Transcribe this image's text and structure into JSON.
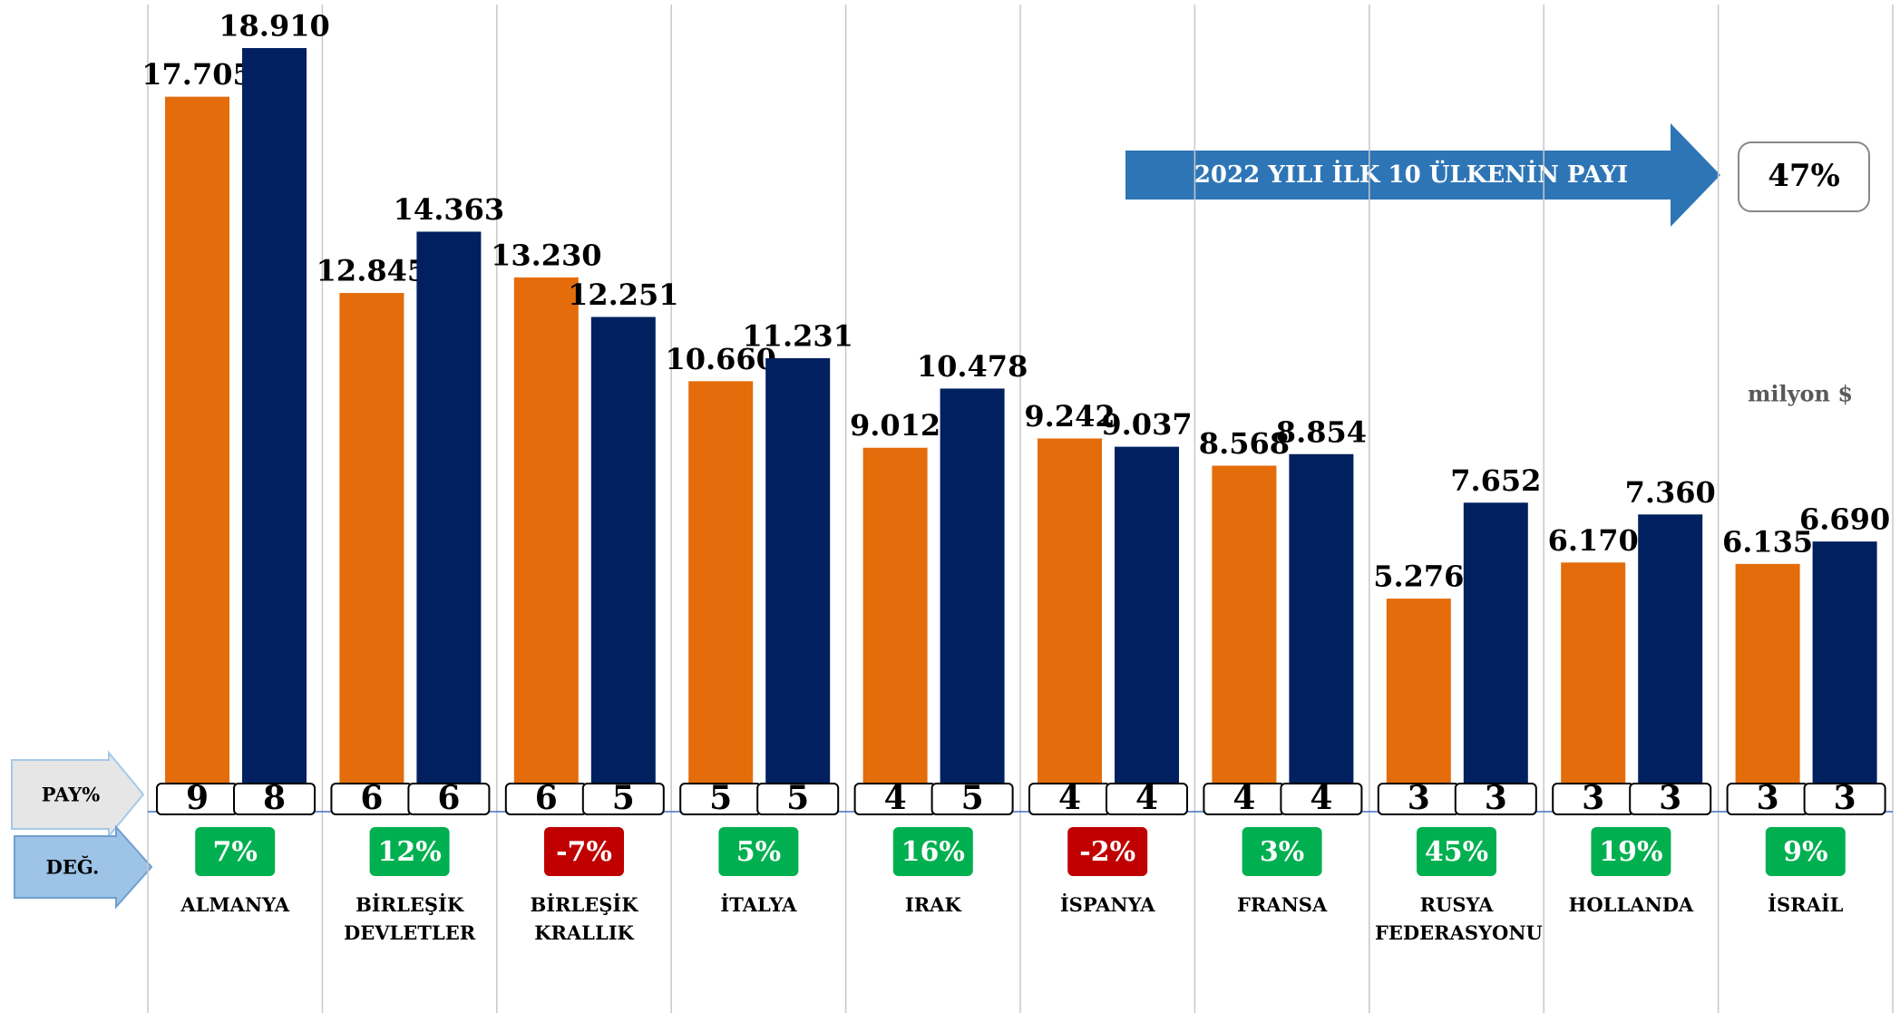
{
  "chart_data": {
    "type": "bar",
    "categories": [
      "ALMANYA",
      "BİRLEŞİK DEVLETLER",
      "BİRLEŞİK KRALLIK",
      "İTALYA",
      "IRAK",
      "İSPANYA",
      "FRANSA",
      "RUSYA FEDERASYONU",
      "HOLLANDA",
      "İSRAİL"
    ],
    "series": [
      {
        "color": "#e46c0a",
        "values": [
          17705,
          12845,
          13230,
          10660,
          9012,
          9242,
          8568,
          5276,
          6170,
          6135
        ],
        "value_labels": [
          "17.705",
          "12.845",
          "13.230",
          "10.660",
          "9.012",
          "9.242",
          "8.568",
          "5.276",
          "6.170",
          "6.135"
        ],
        "shares": [
          9,
          6,
          6,
          5,
          4,
          4,
          4,
          3,
          3,
          3
        ]
      },
      {
        "color": "#002060",
        "values": [
          18910,
          14363,
          12251,
          11231,
          10478,
          9037,
          8854,
          7652,
          7360,
          6690
        ],
        "value_labels": [
          "18.910",
          "14.363",
          "12.251",
          "11.231",
          "10.478",
          "9.037",
          "8.854",
          "7.652",
          "7.360",
          "6.690"
        ],
        "shares": [
          8,
          6,
          5,
          5,
          5,
          4,
          4,
          3,
          3,
          3
        ]
      }
    ],
    "share_label": "PAY%",
    "change_label": "DEĞ.",
    "change": {
      "values": [
        7,
        12,
        -7,
        5,
        16,
        -2,
        3,
        45,
        19,
        9
      ],
      "value_labels": [
        "7%",
        "12%",
        "-7%",
        "5%",
        "16%",
        "-2%",
        "3%",
        "45%",
        "19%",
        "9%"
      ],
      "positive_color": "#00b050",
      "negative_color": "#c00000"
    },
    "annotation": {
      "text": "2022 YILI İLK 10 ÜLKENİN PAYI",
      "value": 47,
      "value_label": "47%"
    },
    "unit": "milyon $",
    "grid": true
  }
}
